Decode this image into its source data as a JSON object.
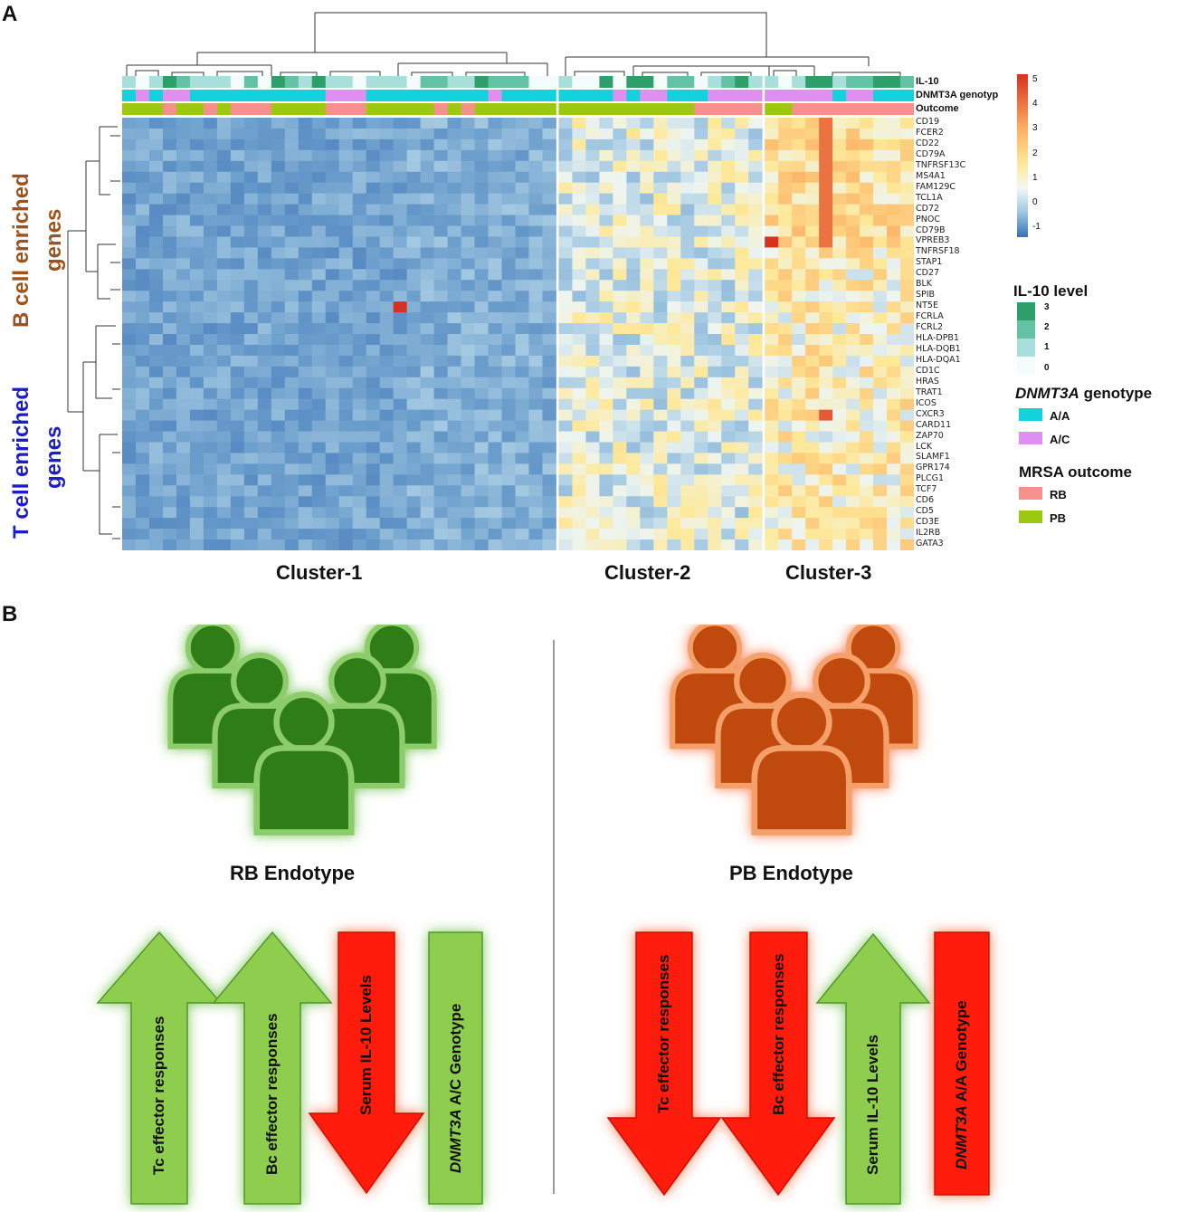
{
  "panel_a": {
    "letter": "A",
    "annotations": {
      "il10": "IL-10",
      "genotype": "DNMT3A genotyp",
      "outcome": "Outcome"
    },
    "genes": [
      "CD19",
      "FCER2",
      "CD22",
      "CD79A",
      "TNFRSF13C",
      "MS4A1",
      "FAM129C",
      "TCL1A",
      "CD72",
      "PNOC",
      "CD79B",
      "VPREB3",
      "TNFRSF18",
      "STAP1",
      "CD27",
      "BLK",
      "SPIB",
      "NT5E",
      "FCRLA",
      "FCRL2",
      "HLA-DPB1",
      "HLA-DQB1",
      "HLA-DQA1",
      "CD1C",
      "HRAS",
      "TRAT1",
      "ICOS",
      "CXCR3",
      "CARD11",
      "ZAP70",
      "LCK",
      "SLAMF1",
      "GPR174",
      "PLCG1",
      "TCF7",
      "CD6",
      "CD5",
      "CD3E",
      "IL2RB",
      "GATA3"
    ],
    "clusters": [
      "Cluster-1",
      "Cluster-2",
      "Cluster-3"
    ],
    "row_groups": {
      "b_cell_line1": "B cell  enriched",
      "b_cell_line2": "genes",
      "t_cell_line1": "T cell  enriched",
      "t_cell_line2": "genes"
    },
    "colorbar_ticks": [
      "5",
      "4",
      "3",
      "2",
      "1",
      "0",
      "-1"
    ],
    "legend": {
      "il10_title": "IL-10 level",
      "il10_levels": [
        "3",
        "2",
        "1",
        "0"
      ],
      "genotype_title_italic": "DNMT3A",
      "genotype_title_rest": " genotype",
      "genotype_items": [
        "A/A",
        "A/C"
      ],
      "outcome_title": "MRSA outcome",
      "outcome_items": [
        "RB",
        "PB"
      ]
    },
    "colors": {
      "il10": [
        "#f3fbfb",
        "#a9dfda",
        "#63c2a4",
        "#2e9e6a"
      ],
      "aa": "#14d1de",
      "ac": "#de8ff0",
      "rb": "#f5918c",
      "pb": "#9cc812"
    }
  },
  "panel_b": {
    "letter": "B",
    "rb_endotype": "RB Endotype",
    "pb_endotype": "PB Endotype",
    "rb_arrows": [
      "Tc effector responses",
      "Bc effector responses",
      "Serum IL-10 Levels",
      "DNMT3A A/C Genotype"
    ],
    "pb_arrows": [
      "Tc effector responses",
      "Bc effector responses",
      "Serum IL-10 Levels",
      "DNMT3A A/A Genotype"
    ],
    "colors": {
      "green_group": "#2e7d14",
      "orange_group": "#c0480a",
      "arrow_green": "#8fcd4f",
      "arrow_red": "#ff1a0a"
    }
  }
}
